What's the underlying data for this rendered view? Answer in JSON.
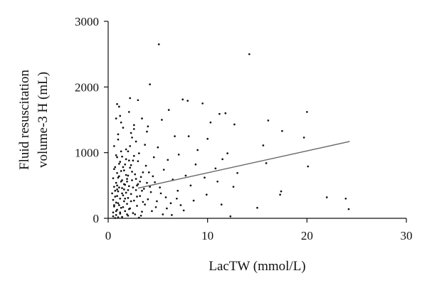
{
  "chart_data": {
    "type": "scatter",
    "title": "",
    "xlabel": "LacTW (mmol/L)",
    "ylabel_lines": [
      "Fluid resuscitation",
      "volume-3 H (mL)"
    ],
    "xlim": [
      0,
      30
    ],
    "ylim": [
      0,
      3000
    ],
    "xticks": [
      0,
      10,
      20,
      30
    ],
    "yticks": [
      0,
      1000,
      2000,
      3000
    ],
    "grid": false,
    "legend": "none",
    "point_color": "#111111",
    "line_color": "#666666",
    "trend_line": {
      "x": [
        3.0,
        24.3
      ],
      "y": [
        460,
        1170
      ]
    },
    "points": [
      [
        5.1,
        2650
      ],
      [
        14.2,
        2500
      ],
      [
        4.2,
        2040
      ],
      [
        2.2,
        1830
      ],
      [
        7.5,
        1810
      ],
      [
        8.0,
        1790
      ],
      [
        3.0,
        1800
      ],
      [
        9.5,
        1750
      ],
      [
        0.9,
        1740
      ],
      [
        1.1,
        1700
      ],
      [
        6.1,
        1650
      ],
      [
        11.2,
        1590
      ],
      [
        11.8,
        1600
      ],
      [
        20.0,
        1620
      ],
      [
        2.1,
        1620
      ],
      [
        1.2,
        1560
      ],
      [
        3.4,
        1520
      ],
      [
        5.4,
        1500
      ],
      [
        16.1,
        1490
      ],
      [
        10.3,
        1460
      ],
      [
        12.7,
        1430
      ],
      [
        2.6,
        1420
      ],
      [
        4.0,
        1400
      ],
      [
        1.5,
        1380
      ],
      [
        17.5,
        1330
      ],
      [
        6.7,
        1250
      ],
      [
        8.1,
        1250
      ],
      [
        19.7,
        1230
      ],
      [
        2.3,
        1300
      ],
      [
        1.0,
        1200
      ],
      [
        2.8,
        1170
      ],
      [
        10.0,
        1210
      ],
      [
        3.7,
        1120
      ],
      [
        0.6,
        1100
      ],
      [
        15.6,
        1110
      ],
      [
        5.0,
        1080
      ],
      [
        1.8,
        1050
      ],
      [
        9.0,
        1040
      ],
      [
        12.0,
        990
      ],
      [
        2.0,
        1020
      ],
      [
        3.1,
        990
      ],
      [
        7.1,
        970
      ],
      [
        0.8,
        960
      ],
      [
        1.4,
        940
      ],
      [
        4.6,
        930
      ],
      [
        11.5,
        900
      ],
      [
        6.0,
        890
      ],
      [
        2.5,
        880
      ],
      [
        15.9,
        840
      ],
      [
        1.2,
        860
      ],
      [
        8.8,
        820
      ],
      [
        3.8,
        800
      ],
      [
        20.1,
        790
      ],
      [
        0.7,
        780
      ],
      [
        2.2,
        770
      ],
      [
        10.8,
        760
      ],
      [
        5.6,
        740
      ],
      [
        1.6,
        730
      ],
      [
        4.1,
        700
      ],
      [
        13.0,
        690
      ],
      [
        0.9,
        690
      ],
      [
        2.7,
        670
      ],
      [
        7.8,
        650
      ],
      [
        1.1,
        640
      ],
      [
        3.3,
        630
      ],
      [
        9.7,
        620
      ],
      [
        0.5,
        610
      ],
      [
        1.9,
        600
      ],
      [
        6.5,
        590
      ],
      [
        2.4,
        580
      ],
      [
        1.3,
        560
      ],
      [
        11.0,
        560
      ],
      [
        4.7,
        550
      ],
      [
        0.8,
        540
      ],
      [
        3.0,
        520
      ],
      [
        1.7,
        510
      ],
      [
        8.3,
        500
      ],
      [
        2.1,
        490
      ],
      [
        0.6,
        480
      ],
      [
        12.6,
        480
      ],
      [
        5.2,
        470
      ],
      [
        1.4,
        460
      ],
      [
        3.6,
        450
      ],
      [
        0.9,
        440
      ],
      [
        2.8,
        430
      ],
      [
        7.0,
        420
      ],
      [
        1.0,
        410
      ],
      [
        17.4,
        410
      ],
      [
        4.3,
        400
      ],
      [
        1.8,
        390
      ],
      [
        0.4,
        380
      ],
      [
        2.3,
        370
      ],
      [
        9.9,
        360
      ],
      [
        1.5,
        350
      ],
      [
        3.2,
        340
      ],
      [
        17.3,
        360
      ],
      [
        0.7,
        330
      ],
      [
        5.8,
        320
      ],
      [
        2.0,
        310
      ],
      [
        22.0,
        320
      ],
      [
        1.2,
        300
      ],
      [
        23.9,
        300
      ],
      [
        4.0,
        290
      ],
      [
        0.5,
        280
      ],
      [
        2.6,
        270
      ],
      [
        8.6,
        270
      ],
      [
        1.6,
        260
      ],
      [
        3.5,
        250
      ],
      [
        0.8,
        240
      ],
      [
        6.3,
        230
      ],
      [
        1.9,
        220
      ],
      [
        11.4,
        210
      ],
      [
        1.1,
        200
      ],
      [
        2.9,
        190
      ],
      [
        0.6,
        180
      ],
      [
        4.8,
        170
      ],
      [
        1.3,
        160
      ],
      [
        15.0,
        160
      ],
      [
        2.2,
        150
      ],
      [
        24.2,
        140
      ],
      [
        0.9,
        130
      ],
      [
        7.6,
        120
      ],
      [
        1.7,
        110
      ],
      [
        3.4,
        100
      ],
      [
        0.5,
        90
      ],
      [
        2.5,
        80
      ],
      [
        1.2,
        70
      ],
      [
        5.5,
        60
      ],
      [
        0.8,
        50
      ],
      [
        2.0,
        40
      ],
      [
        12.3,
        30
      ],
      [
        1.4,
        20
      ],
      [
        3.1,
        10
      ],
      [
        0.7,
        5
      ],
      [
        1.0,
        620
      ],
      [
        1.5,
        780
      ],
      [
        2.1,
        880
      ],
      [
        0.9,
        930
      ],
      [
        1.3,
        720
      ],
      [
        1.8,
        660
      ],
      [
        2.4,
        710
      ],
      [
        1.6,
        520
      ],
      [
        1.1,
        470
      ],
      [
        0.7,
        420
      ],
      [
        2.0,
        430
      ],
      [
        1.4,
        380
      ],
      [
        0.9,
        340
      ],
      [
        1.7,
        300
      ],
      [
        2.3,
        260
      ],
      [
        1.0,
        230
      ],
      [
        0.6,
        200
      ],
      [
        1.5,
        170
      ],
      [
        2.1,
        140
      ],
      [
        0.8,
        110
      ],
      [
        1.2,
        90
      ],
      [
        1.9,
        60
      ],
      [
        0.5,
        30
      ],
      [
        1.0,
        15
      ],
      [
        2.7,
        60
      ],
      [
        3.3,
        40
      ],
      [
        2.9,
        330
      ],
      [
        3.7,
        210
      ],
      [
        4.4,
        110
      ],
      [
        4.9,
        260
      ],
      [
        5.3,
        380
      ],
      [
        5.9,
        150
      ],
      [
        6.4,
        50
      ],
      [
        6.9,
        300
      ],
      [
        7.3,
        200
      ],
      [
        2.2,
        1100
      ],
      [
        1.3,
        1020
      ],
      [
        2.6,
        950
      ],
      [
        1.8,
        900
      ],
      [
        3.0,
        870
      ],
      [
        1.1,
        830
      ],
      [
        2.3,
        810
      ],
      [
        0.6,
        750
      ],
      [
        3.5,
        700
      ],
      [
        4.5,
        640
      ],
      [
        2.8,
        600
      ],
      [
        1.9,
        560
      ],
      [
        3.9,
        540
      ],
      [
        4.2,
        480
      ],
      [
        2.5,
        470
      ],
      [
        3.4,
        420
      ],
      [
        1.6,
        440
      ],
      [
        2.9,
        500
      ],
      [
        1.4,
        580
      ],
      [
        2.0,
        650
      ],
      [
        3.2,
        560
      ],
      [
        0.9,
        500
      ],
      [
        1.7,
        820
      ],
      [
        2.4,
        1230
      ],
      [
        1.0,
        1280
      ],
      [
        3.9,
        1320
      ],
      [
        2.6,
        1360
      ],
      [
        1.3,
        1460
      ],
      [
        0.8,
        1520
      ]
    ]
  }
}
